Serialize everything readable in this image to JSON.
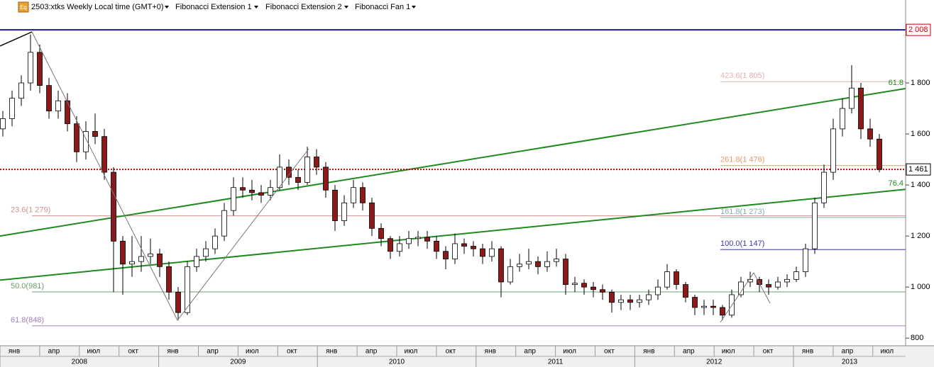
{
  "toolbar": {
    "icon": "Eq",
    "items": [
      "2503:xtks Weekly Local time (GMT+0)",
      "Fibonacci Extension 1",
      "Fibonacci Extension 2",
      "Fibonacci Fan 1"
    ]
  },
  "chart_data": {
    "type": "candlestick",
    "ylim": [
      770,
      2125
    ],
    "yticks": [
      {
        "value": 1800,
        "label": "1 800"
      },
      {
        "value": 1600,
        "label": "1 600"
      },
      {
        "value": 1400,
        "label": "1 400"
      },
      {
        "value": 1200,
        "label": "1 200"
      },
      {
        "value": 1000,
        "label": "1 000"
      },
      800
    ],
    "month_labels": [
      "янв",
      "апр",
      "июл",
      "окт",
      "янв",
      "апр",
      "июл",
      "окт",
      "янв",
      "апр",
      "июл",
      "окт",
      "янв",
      "апр",
      "июл",
      "окт",
      "янв",
      "апр",
      "июл",
      "окт",
      "янв",
      "апр",
      "июл"
    ],
    "year_labels": [
      "2008",
      "2009",
      "2010",
      "2011",
      "2012",
      "2013"
    ],
    "up_color": "#ffffff",
    "down_color": "#8b1a1a",
    "high_line": {
      "value": 2008,
      "label": "2 008",
      "color": "#1a1aa0"
    },
    "last_price": {
      "value": 1461,
      "label": "1 461",
      "color": "#cc0000"
    },
    "fib_levels": [
      {
        "label": "423.6(1 805)",
        "value": 1805,
        "color": "#e8b0b0"
      },
      {
        "label": "261.8(1 476)",
        "value": 1476,
        "color": "#e89a6a"
      },
      {
        "label": "161.8(1 273)",
        "value": 1273,
        "color": "#7fb0b0"
      },
      {
        "label": "100.0(1 147)",
        "value": 1147,
        "color": "#3a3ab0"
      },
      {
        "label": "23.6(1 279)",
        "value": 1279,
        "color": "#d09090"
      },
      {
        "label": "50.0(981)",
        "value": 981,
        "color": "#6aa06a"
      },
      {
        "label": "61.8(848)",
        "value": 848,
        "color": "#a080c0"
      }
    ],
    "fan_lines": [
      {
        "label": "61.8",
        "start": 1200,
        "end": 1778,
        "color": "#1f8a1f"
      },
      {
        "label": "76.4",
        "start": 1027,
        "end": 1383,
        "color": "#1f8a1f"
      }
    ],
    "ohlc": [
      [
        1620,
        1660,
        1690,
        1590
      ],
      [
        1660,
        1740,
        1770,
        1630
      ],
      [
        1740,
        1800,
        1830,
        1710
      ],
      [
        1800,
        1920,
        1990,
        1770
      ],
      [
        1920,
        1790,
        1950,
        1760
      ],
      [
        1790,
        1690,
        1820,
        1660
      ],
      [
        1690,
        1730,
        1770,
        1660
      ],
      [
        1730,
        1640,
        1760,
        1610
      ],
      [
        1640,
        1530,
        1670,
        1490
      ],
      [
        1530,
        1610,
        1650,
        1500
      ],
      [
        1610,
        1590,
        1680,
        1560
      ],
      [
        1590,
        1450,
        1620,
        1420
      ],
      [
        1450,
        1180,
        1470,
        980
      ],
      [
        1180,
        1090,
        1200,
        970
      ],
      [
        1090,
        1100,
        1200,
        1040
      ],
      [
        1100,
        1120,
        1200,
        1060
      ],
      [
        1120,
        1130,
        1190,
        1090
      ],
      [
        1130,
        1080,
        1150,
        1040
      ],
      [
        1080,
        980,
        1100,
        950
      ],
      [
        980,
        900,
        1000,
        870
      ],
      [
        900,
        1080,
        1100,
        890
      ],
      [
        1080,
        1120,
        1150,
        1060
      ],
      [
        1120,
        1150,
        1180,
        1100
      ],
      [
        1150,
        1200,
        1230,
        1130
      ],
      [
        1200,
        1300,
        1330,
        1180
      ],
      [
        1300,
        1390,
        1430,
        1280
      ],
      [
        1390,
        1380,
        1430,
        1350
      ],
      [
        1380,
        1370,
        1420,
        1340
      ],
      [
        1370,
        1360,
        1400,
        1330
      ],
      [
        1360,
        1390,
        1420,
        1340
      ],
      [
        1390,
        1470,
        1520,
        1380
      ],
      [
        1470,
        1430,
        1500,
        1400
      ],
      [
        1430,
        1410,
        1460,
        1380
      ],
      [
        1410,
        1510,
        1550,
        1400
      ],
      [
        1510,
        1470,
        1540,
        1440
      ],
      [
        1470,
        1380,
        1490,
        1350
      ],
      [
        1380,
        1260,
        1400,
        1220
      ],
      [
        1260,
        1330,
        1360,
        1240
      ],
      [
        1330,
        1390,
        1420,
        1310
      ],
      [
        1390,
        1330,
        1410,
        1300
      ],
      [
        1330,
        1230,
        1350,
        1200
      ],
      [
        1230,
        1190,
        1250,
        1160
      ],
      [
        1190,
        1140,
        1200,
        1110
      ],
      [
        1140,
        1170,
        1200,
        1120
      ],
      [
        1170,
        1190,
        1220,
        1150
      ],
      [
        1190,
        1195,
        1220,
        1160
      ],
      [
        1195,
        1180,
        1220,
        1150
      ],
      [
        1180,
        1140,
        1200,
        1110
      ],
      [
        1140,
        1110,
        1160,
        1070
      ],
      [
        1110,
        1170,
        1210,
        1090
      ],
      [
        1170,
        1160,
        1190,
        1130
      ],
      [
        1160,
        1150,
        1180,
        1120
      ],
      [
        1150,
        1120,
        1170,
        1090
      ],
      [
        1120,
        1150,
        1180,
        1100
      ],
      [
        1150,
        1020,
        1160,
        960
      ],
      [
        1020,
        1080,
        1110,
        1010
      ],
      [
        1080,
        1090,
        1130,
        1060
      ],
      [
        1090,
        1100,
        1150,
        1070
      ],
      [
        1100,
        1080,
        1120,
        1050
      ],
      [
        1080,
        1100,
        1140,
        1060
      ],
      [
        1100,
        1110,
        1150,
        1080
      ],
      [
        1110,
        1010,
        1130,
        970
      ],
      [
        1010,
        1015,
        1040,
        980
      ],
      [
        1015,
        1000,
        1030,
        970
      ],
      [
        1000,
        990,
        1020,
        960
      ],
      [
        990,
        980,
        1010,
        950
      ],
      [
        980,
        940,
        990,
        900
      ],
      [
        940,
        950,
        970,
        910
      ],
      [
        950,
        940,
        970,
        910
      ],
      [
        940,
        950,
        970,
        920
      ],
      [
        950,
        970,
        990,
        930
      ],
      [
        970,
        1000,
        1030,
        950
      ],
      [
        1000,
        1060,
        1090,
        990
      ],
      [
        1060,
        1010,
        1070,
        990
      ],
      [
        1010,
        960,
        1020,
        940
      ],
      [
        960,
        920,
        970,
        890
      ],
      [
        920,
        925,
        950,
        890
      ],
      [
        925,
        920,
        950,
        890
      ],
      [
        920,
        890,
        930,
        870
      ],
      [
        890,
        970,
        990,
        880
      ],
      [
        970,
        1020,
        1040,
        960
      ],
      [
        1020,
        1030,
        1060,
        1000
      ],
      [
        1030,
        1010,
        1040,
        980
      ],
      [
        1010,
        1000,
        1030,
        970
      ],
      [
        1000,
        1020,
        1040,
        990
      ],
      [
        1020,
        1030,
        1050,
        1000
      ],
      [
        1030,
        1060,
        1080,
        1020
      ],
      [
        1060,
        1150,
        1170,
        1040
      ],
      [
        1150,
        1330,
        1350,
        1130
      ],
      [
        1330,
        1450,
        1480,
        1310
      ],
      [
        1450,
        1620,
        1660,
        1420
      ],
      [
        1620,
        1700,
        1740,
        1590
      ],
      [
        1700,
        1780,
        1870,
        1680
      ],
      [
        1780,
        1620,
        1800,
        1580
      ],
      [
        1620,
        1580,
        1660,
        1550
      ],
      [
        1580,
        1461,
        1600,
        1450
      ]
    ]
  }
}
